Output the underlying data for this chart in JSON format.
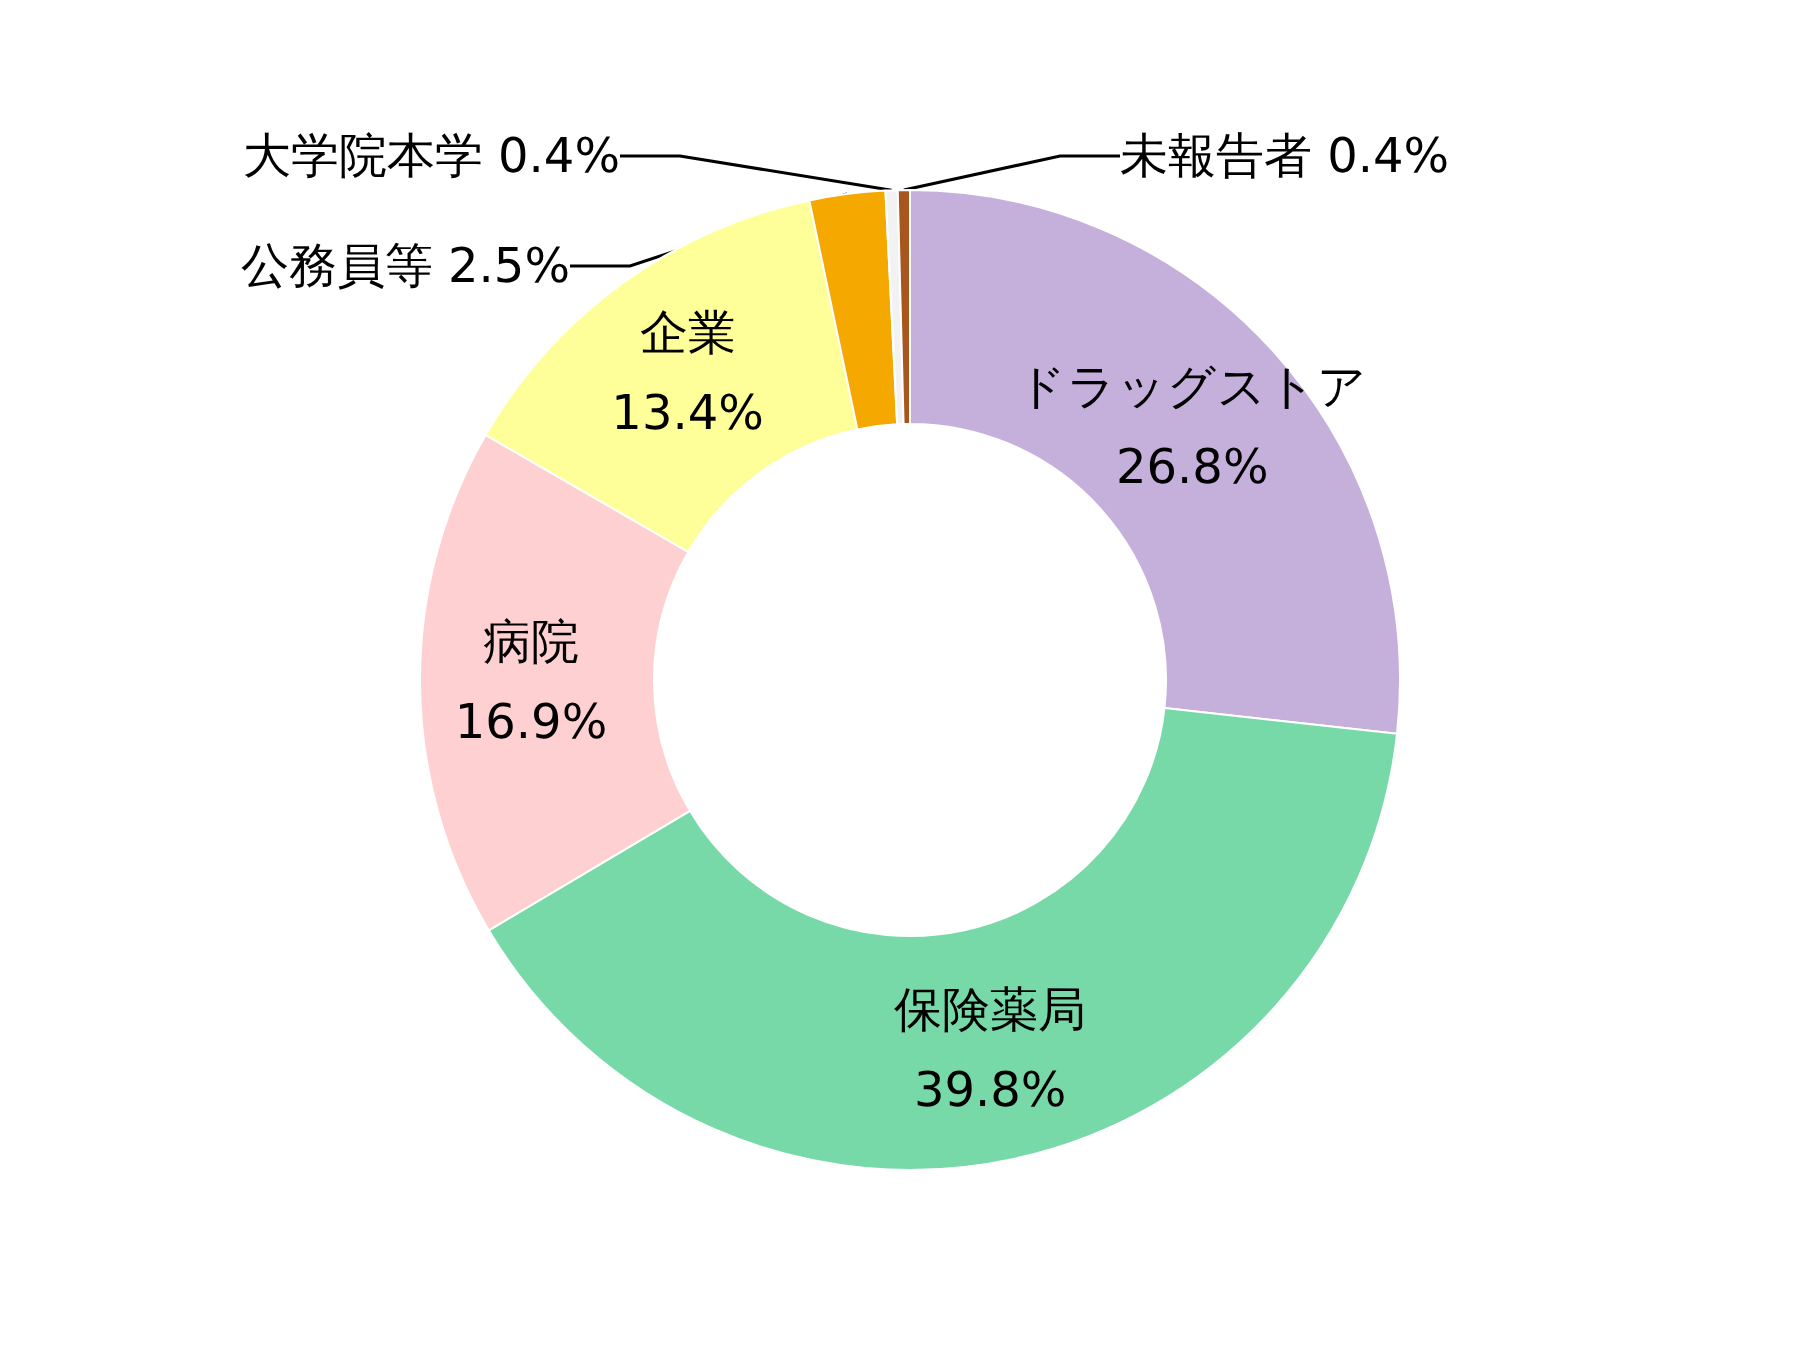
{
  "chart_data": {
    "type": "donut",
    "categories": [
      "ドラッグストア",
      "保険薬局",
      "病院",
      "企業",
      "公務員等",
      "大学院本学",
      "未報告者"
    ],
    "values": [
      26.8,
      39.8,
      16.9,
      13.4,
      2.5,
      0.4,
      0.4
    ],
    "colors": [
      "#c5b0dc",
      "#78d9a8",
      "#ffd0d2",
      "#ffff99",
      "#f5a800",
      "#f2f2f2",
      "#a8561c"
    ],
    "value_labels": [
      "26.8%",
      "39.8%",
      "16.9%",
      "13.4%",
      "2.5%",
      "0.4%",
      "0.4%"
    ],
    "legend": false
  }
}
